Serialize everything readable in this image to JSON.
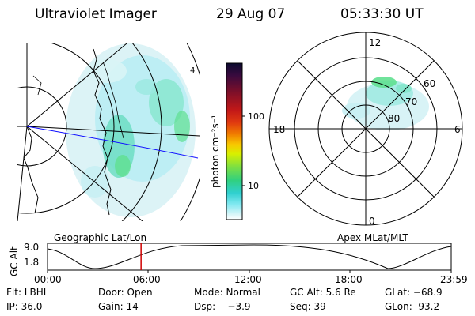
{
  "header": {
    "instrument": "Ultraviolet Imager",
    "date": "29 Aug 07",
    "time": "05:33:30 UT"
  },
  "left_panel": {
    "label": "Geographic Lat/Lon",
    "grid_annotation": "4"
  },
  "colorbar": {
    "unit_label": "photon cm⁻²s⁻¹",
    "ticks": [
      "100",
      "10"
    ],
    "scale": "log",
    "colors": [
      "#0b0a2e",
      "#3a0a3e",
      "#7a0f2a",
      "#c21818",
      "#e03a10",
      "#f07a00",
      "#f8c800",
      "#d8f000",
      "#80e040",
      "#30d080",
      "#30d0d0",
      "#7fe8f0",
      "#d0f4f8",
      "#ffffff"
    ]
  },
  "right_panel": {
    "label": "Apex MLat/MLT",
    "mlt_labels": {
      "top": "12",
      "bottom": "0",
      "left": "18",
      "right": "6"
    },
    "mlat_labels": [
      "60",
      "70",
      "80"
    ]
  },
  "timeline": {
    "axis_title": "GC Alt",
    "y_ticks": [
      "9.0",
      "1.8"
    ],
    "x_ticks": [
      "00:00",
      "06:00",
      "12:00",
      "18:00",
      "23:59"
    ],
    "marker_time_hours": 5.56,
    "marker_color": "#d00000"
  },
  "footer": {
    "row1": {
      "flt": "Flt: LBHL",
      "door": "Door: Open",
      "mode": "Mode: Normal",
      "gcalt": "GC Alt: 5.6 Re",
      "glat": "GLat: −68.9"
    },
    "row2": {
      "ip": "IP: 36.0",
      "gain": "Gain: 14",
      "dsp": "Dsp:    −3.9",
      "seq": "Seq: 39",
      "glon": "GLon:  93.2"
    }
  }
}
